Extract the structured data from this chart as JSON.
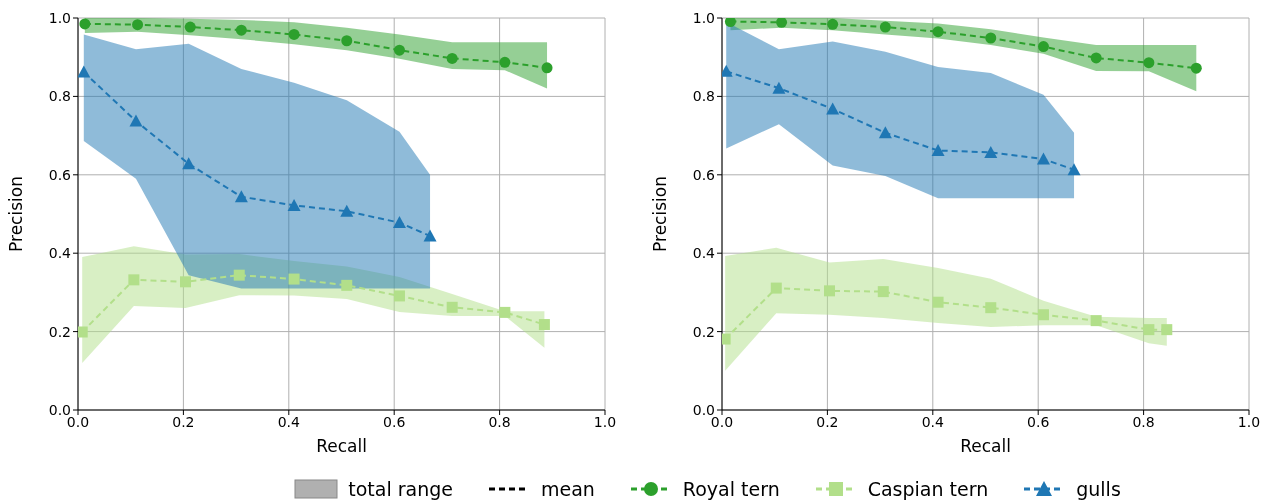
{
  "chart_data": [
    {
      "type": "line",
      "xlabel": "Recall",
      "ylabel": "Precision",
      "xlim": [
        0,
        1
      ],
      "ylim": [
        0,
        1
      ],
      "xticks": [
        {
          "value": 0,
          "label": "0.0"
        },
        {
          "value": 0.2,
          "label": "0.2"
        },
        {
          "value": 0.4,
          "label": "0.4"
        },
        {
          "value": 0.6,
          "label": "0.6"
        },
        {
          "value": 0.8,
          "label": "0.8"
        },
        {
          "value": 1,
          "label": "1.0"
        }
      ],
      "yticks": [
        {
          "value": 0,
          "label": "0.0"
        },
        {
          "value": 0.2,
          "label": "0.2"
        },
        {
          "value": 0.4,
          "label": "0.4"
        },
        {
          "value": 0.6,
          "label": "0.6"
        },
        {
          "value": 0.8,
          "label": "0.8"
        },
        {
          "value": 1,
          "label": "1.0"
        }
      ],
      "grid": true,
      "line_style": "dashed",
      "legend": "bottom",
      "annotations": [
        "total range",
        "mean"
      ],
      "series": [
        {
          "name": "Royal tern",
          "color": "#2ca02c",
          "marker": "circle",
          "x": [
            0.013,
            0.113,
            0.213,
            0.31,
            0.41,
            0.51,
            0.61,
            0.71,
            0.81,
            0.89
          ],
          "values": [
            0.985,
            0.983,
            0.977,
            0.969,
            0.958,
            0.942,
            0.918,
            0.897,
            0.887,
            0.873
          ],
          "lower": [
            0.962,
            0.965,
            0.956,
            0.946,
            0.933,
            0.918,
            0.896,
            0.87,
            0.867,
            0.82
          ],
          "upper": [
            1.0,
            1.0,
            0.998,
            0.995,
            0.989,
            0.975,
            0.958,
            0.938,
            0.938,
            0.938
          ]
        },
        {
          "name": "Caspian tern",
          "color": "#b2df8a",
          "marker": "square",
          "x": [
            0.008,
            0.106,
            0.204,
            0.306,
            0.41,
            0.51,
            0.61,
            0.71,
            0.81,
            0.885
          ],
          "values": [
            0.199,
            0.332,
            0.327,
            0.344,
            0.334,
            0.318,
            0.291,
            0.262,
            0.249,
            0.218
          ],
          "lower": [
            0.12,
            0.265,
            0.26,
            0.293,
            0.292,
            0.283,
            0.25,
            0.24,
            0.24,
            0.159
          ],
          "upper": [
            0.39,
            0.418,
            0.397,
            0.398,
            0.38,
            0.366,
            0.339,
            0.296,
            0.252,
            0.252
          ]
        },
        {
          "name": "gulls",
          "color": "#1f77b4",
          "marker": "triangle",
          "x": [
            0.011,
            0.11,
            0.21,
            0.31,
            0.41,
            0.51,
            0.61,
            0.668
          ],
          "values": [
            0.862,
            0.737,
            0.628,
            0.544,
            0.522,
            0.507,
            0.478,
            0.444
          ],
          "lower": [
            0.686,
            0.59,
            0.344,
            0.31,
            0.31,
            0.31,
            0.31,
            0.31
          ],
          "upper": [
            0.958,
            0.92,
            0.934,
            0.87,
            0.835,
            0.79,
            0.71,
            0.6
          ]
        }
      ]
    },
    {
      "type": "line",
      "xlabel": "Recall",
      "ylabel": "Precision",
      "xlim": [
        0,
        1
      ],
      "ylim": [
        0,
        1
      ],
      "xticks": [
        {
          "value": 0,
          "label": "0.0"
        },
        {
          "value": 0.2,
          "label": "0.2"
        },
        {
          "value": 0.4,
          "label": "0.4"
        },
        {
          "value": 0.6,
          "label": "0.6"
        },
        {
          "value": 0.8,
          "label": "0.8"
        },
        {
          "value": 1,
          "label": "1.0"
        }
      ],
      "yticks": [
        {
          "value": 0,
          "label": "0.0"
        },
        {
          "value": 0.2,
          "label": "0.2"
        },
        {
          "value": 0.4,
          "label": "0.4"
        },
        {
          "value": 0.6,
          "label": "0.6"
        },
        {
          "value": 0.8,
          "label": "0.8"
        },
        {
          "value": 1,
          "label": "1.0"
        }
      ],
      "grid": true,
      "line_style": "dashed",
      "series": [
        {
          "color": "#2ca02c",
          "marker": "circle",
          "x": [
            0.016,
            0.113,
            0.21,
            0.31,
            0.41,
            0.51,
            0.61,
            0.71,
            0.81,
            0.9
          ],
          "values": [
            0.991,
            0.989,
            0.984,
            0.977,
            0.965,
            0.949,
            0.927,
            0.898,
            0.886,
            0.872
          ],
          "lower": [
            0.969,
            0.975,
            0.969,
            0.958,
            0.948,
            0.931,
            0.909,
            0.865,
            0.864,
            0.813
          ],
          "upper": [
            1.0,
            1.0,
            1.0,
            0.993,
            0.986,
            0.971,
            0.95,
            0.931,
            0.931,
            0.931
          ]
        },
        {
          "color": "#b2df8a",
          "marker": "square",
          "x": [
            0.006,
            0.103,
            0.204,
            0.306,
            0.41,
            0.51,
            0.61,
            0.71,
            0.81,
            0.844
          ],
          "values": [
            0.181,
            0.311,
            0.304,
            0.302,
            0.275,
            0.261,
            0.243,
            0.228,
            0.205,
            0.205
          ],
          "lower": [
            0.1,
            0.247,
            0.243,
            0.235,
            0.222,
            0.212,
            0.216,
            0.216,
            0.17,
            0.164
          ],
          "upper": [
            0.393,
            0.414,
            0.376,
            0.385,
            0.362,
            0.335,
            0.279,
            0.238,
            0.235,
            0.235
          ]
        },
        {
          "color": "#1f77b4",
          "marker": "triangle",
          "x": [
            0.008,
            0.108,
            0.21,
            0.31,
            0.41,
            0.51,
            0.61,
            0.668
          ],
          "values": [
            0.864,
            0.821,
            0.768,
            0.707,
            0.662,
            0.657,
            0.64,
            0.613
          ],
          "lower": [
            0.667,
            0.729,
            0.624,
            0.597,
            0.54,
            0.54,
            0.54,
            0.54
          ],
          "upper": [
            0.99,
            0.92,
            0.94,
            0.914,
            0.875,
            0.86,
            0.804,
            0.707
          ]
        }
      ]
    }
  ]
}
